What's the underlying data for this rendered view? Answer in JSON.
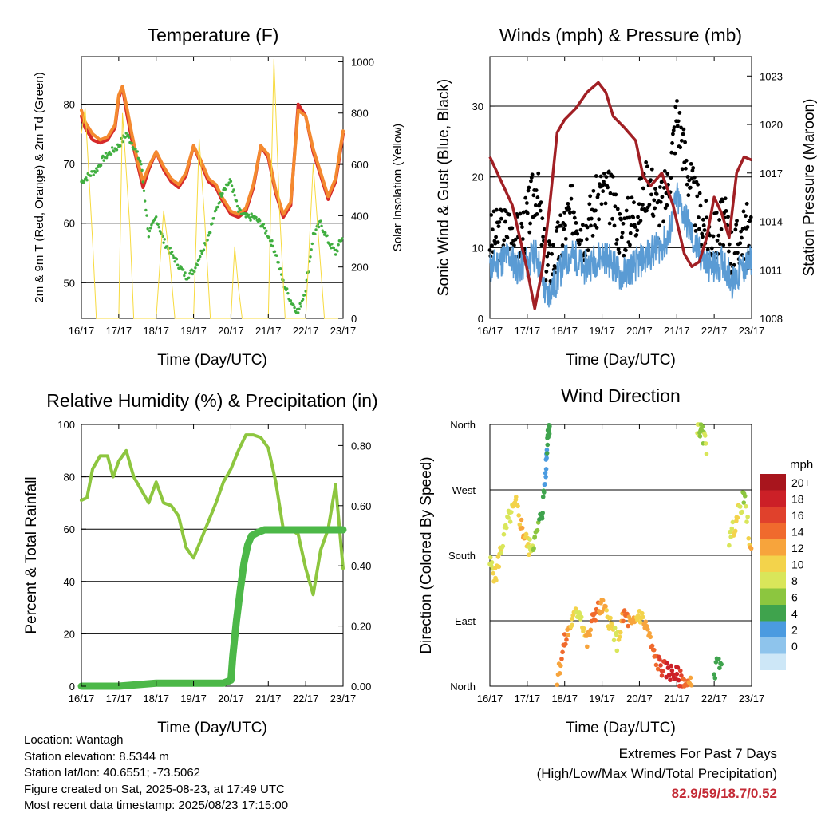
{
  "colors": {
    "temp_red": "#d62a2a",
    "temp_orange": "#f4892f",
    "dew_green": "#3fae3f",
    "solar_yellow": "#f7da3e",
    "gust_black": "#000000",
    "wind_blue": "#5a9bd4",
    "pressure_maroon": "#a11f24",
    "rh_lightgreen": "#8dc63f",
    "precip_green": "#4cb848",
    "extremes_red": "#c42a35"
  },
  "x_ticks": [
    "16/17",
    "17/17",
    "18/17",
    "19/17",
    "20/17",
    "21/17",
    "22/17",
    "23/17"
  ],
  "chart_data": [
    {
      "type": "line",
      "title": "Temperature (F)",
      "xlabel": "Time (Day/UTC)",
      "ylabel": "2m & 9m T (Red, Orange) & 2m Td (Green)",
      "ylabel_right": "Solar Insolation (Yellow)",
      "ylim": [
        44,
        88
      ],
      "ylim_right": [
        0,
        1020
      ],
      "yticks": [
        50,
        60,
        70,
        80
      ],
      "yticks_right": [
        0,
        200,
        400,
        600,
        800,
        1000
      ],
      "grid": true,
      "series": [
        {
          "name": "2m T",
          "color": "#d62a2a",
          "axis": "left",
          "x": [
            0,
            0.1,
            0.3,
            0.5,
            0.7,
            0.9,
            1.0,
            1.1,
            1.2,
            1.35,
            1.5,
            1.65,
            1.8,
            2.0,
            2.2,
            2.4,
            2.6,
            2.8,
            3.0,
            3.2,
            3.4,
            3.6,
            3.75,
            3.9,
            4.0,
            4.2,
            4.4,
            4.6,
            4.8,
            5.0,
            5.2,
            5.4,
            5.6,
            5.8,
            6.0,
            6.2,
            6.4,
            6.6,
            6.8,
            7.0
          ],
          "y": [
            78,
            76,
            74,
            73.5,
            74,
            76,
            81,
            83,
            79,
            74,
            70,
            66,
            69,
            72,
            69,
            67,
            66,
            68,
            73,
            70,
            67,
            66,
            64,
            62.5,
            61.5,
            61,
            62,
            66,
            73,
            71,
            65,
            61,
            63,
            80,
            78,
            72,
            68,
            64,
            67,
            75
          ]
        },
        {
          "name": "9m T",
          "color": "#f4892f",
          "axis": "left",
          "x": [
            0,
            0.1,
            0.3,
            0.5,
            0.7,
            0.9,
            1.0,
            1.1,
            1.2,
            1.35,
            1.5,
            1.65,
            1.8,
            2.0,
            2.2,
            2.4,
            2.6,
            2.8,
            3.0,
            3.2,
            3.4,
            3.6,
            3.75,
            3.9,
            4.0,
            4.2,
            4.4,
            4.6,
            4.8,
            5.0,
            5.2,
            5.4,
            5.6,
            5.8,
            6.0,
            6.2,
            6.4,
            6.6,
            6.8,
            7.0
          ],
          "y": [
            79,
            77,
            75,
            74,
            74.5,
            76.5,
            81.5,
            83,
            80,
            75,
            70.5,
            67,
            69.5,
            72,
            69.5,
            67.5,
            66.5,
            68.5,
            73,
            70.5,
            67.5,
            66.5,
            64.5,
            63,
            62,
            61.5,
            62.5,
            66.5,
            73,
            71.5,
            65.5,
            61.5,
            63.5,
            79,
            78,
            72.5,
            68.5,
            64.5,
            67.5,
            75.5
          ]
        },
        {
          "name": "2m Td",
          "color": "#3fae3f",
          "axis": "left",
          "x": [
            0,
            0.2,
            0.4,
            0.6,
            0.8,
            1.0,
            1.2,
            1.4,
            1.6,
            1.8,
            2.0,
            2.2,
            2.4,
            2.6,
            2.8,
            3.0,
            3.2,
            3.4,
            3.6,
            3.8,
            4.0,
            4.2,
            4.4,
            4.6,
            4.8,
            5.0,
            5.2,
            5.4,
            5.6,
            5.8,
            6.0,
            6.2,
            6.4,
            6.6,
            6.8,
            7.0
          ],
          "y": [
            67,
            68,
            69,
            71,
            72,
            73,
            75,
            73,
            70,
            58,
            61,
            57,
            55,
            53,
            51,
            52,
            55,
            58,
            62,
            66,
            67,
            62,
            61,
            61,
            60,
            58,
            55,
            50,
            47,
            45,
            49,
            58,
            60,
            57,
            55,
            58
          ]
        },
        {
          "name": "Solar Insolation",
          "color": "#f7da3e",
          "axis": "right",
          "x": [
            0,
            0.1,
            0.3,
            0.4,
            1.0,
            1.1,
            1.3,
            1.4,
            2.0,
            2.2,
            2.35,
            2.5,
            3.0,
            3.15,
            3.3,
            3.45,
            4.0,
            4.1,
            4.2,
            4.3,
            5.0,
            5.15,
            5.3,
            5.45,
            6.0,
            6.2,
            6.35,
            6.5,
            7.0
          ],
          "y": [
            720,
            820,
            300,
            0,
            0,
            800,
            350,
            0,
            0,
            420,
            250,
            0,
            0,
            700,
            380,
            0,
            0,
            280,
            120,
            0,
            0,
            1010,
            420,
            0,
            0,
            600,
            300,
            0,
            0
          ]
        }
      ]
    },
    {
      "type": "scatter",
      "title": "Winds (mph) & Pressure (mb)",
      "xlabel": "Time (Day/UTC)",
      "ylabel": "Sonic Wind & Gust (Blue, Black)",
      "ylabel_right": "Station Pressure (Maroon)",
      "ylim": [
        0,
        37
      ],
      "ylim_right": [
        1008,
        1024.2
      ],
      "yticks": [
        0,
        10,
        20,
        30
      ],
      "yticks_right": [
        1008,
        1011,
        1014,
        1017,
        1020,
        1023
      ],
      "grid": true,
      "series": [
        {
          "name": "Gust",
          "color": "#000000",
          "x": [
            0,
            0.25,
            0.5,
            0.75,
            1.0,
            1.25,
            1.5,
            1.75,
            2.0,
            2.25,
            2.5,
            2.75,
            3.0,
            3.25,
            3.5,
            3.75,
            4.0,
            4.25,
            4.5,
            4.75,
            5.0,
            5.25,
            5.5,
            5.75,
            6.0,
            6.25,
            6.5,
            6.75,
            7.0
          ],
          "y": [
            11,
            12,
            13,
            11,
            14,
            19,
            7,
            9,
            13,
            16,
            12,
            15,
            18,
            17,
            12,
            14,
            16,
            20,
            15,
            18,
            29,
            22,
            16,
            13,
            11,
            14,
            9,
            12,
            13
          ]
        },
        {
          "name": "Wind",
          "color": "#5a9bd4",
          "x": [
            0,
            0.25,
            0.5,
            0.75,
            1.0,
            1.25,
            1.5,
            1.75,
            2.0,
            2.25,
            2.5,
            2.75,
            3.0,
            3.25,
            3.5,
            3.75,
            4.0,
            4.25,
            4.5,
            4.75,
            5.0,
            5.25,
            5.5,
            5.75,
            6.0,
            6.25,
            6.5,
            6.75,
            7.0
          ],
          "y": [
            7,
            8,
            9,
            7,
            8,
            9,
            3,
            5,
            8,
            9,
            7,
            8,
            9,
            8,
            6,
            7,
            8,
            9,
            10,
            11,
            17,
            14,
            10,
            8,
            7,
            8,
            5,
            7,
            8
          ]
        },
        {
          "name": "Pressure",
          "color": "#a11f24",
          "axis": "right",
          "x": [
            0,
            0.2,
            0.4,
            0.6,
            0.8,
            1.0,
            1.2,
            1.4,
            1.6,
            1.8,
            2.0,
            2.3,
            2.6,
            2.9,
            3.1,
            3.3,
            3.6,
            3.9,
            4.1,
            4.3,
            4.6,
            4.9,
            5.0,
            5.2,
            5.4,
            5.6,
            5.8,
            6.0,
            6.2,
            6.4,
            6.6,
            6.8,
            7.0
          ],
          "y": [
            1018,
            1017,
            1016,
            1015,
            1013,
            1011,
            1008.6,
            1011,
            1015,
            1019.5,
            1020.3,
            1021,
            1022,
            1022.6,
            1022,
            1020.5,
            1019.8,
            1019,
            1016.8,
            1016.2,
            1017,
            1015,
            1014,
            1012,
            1011.2,
            1011.5,
            1013,
            1015.5,
            1014.5,
            1013,
            1017,
            1018,
            1017.8
          ]
        }
      ]
    },
    {
      "type": "line",
      "title": "Relative Humidity (%) & Precipitation (in)",
      "xlabel": "Time (Day/UTC)",
      "ylabel": "Percent & Total Rainfall",
      "ylim": [
        0,
        100
      ],
      "ylim_right": [
        0,
        0.87
      ],
      "yticks": [
        0,
        20,
        40,
        60,
        80,
        100
      ],
      "yticks_right": [
        0.0,
        0.2,
        0.4,
        0.6,
        0.8
      ],
      "grid": true,
      "series": [
        {
          "name": "RH",
          "color": "#8dc63f",
          "x": [
            0,
            0.15,
            0.3,
            0.5,
            0.7,
            0.85,
            1.0,
            1.2,
            1.4,
            1.6,
            1.8,
            2.0,
            2.2,
            2.4,
            2.6,
            2.8,
            3.0,
            3.2,
            3.4,
            3.6,
            3.8,
            4.0,
            4.2,
            4.4,
            4.6,
            4.8,
            5.0,
            5.2,
            5.4,
            5.6,
            5.8,
            6.0,
            6.2,
            6.4,
            6.6,
            6.8,
            7.0
          ],
          "y": [
            71,
            72,
            83,
            88,
            88,
            80,
            86,
            90,
            80,
            75,
            70,
            78,
            70,
            69,
            65,
            53,
            49,
            56,
            63,
            70,
            78,
            83,
            90,
            96,
            96,
            95,
            91,
            78,
            60,
            60,
            58,
            45,
            35,
            52,
            60,
            77,
            45
          ]
        },
        {
          "name": "Total Precipitation",
          "color": "#4cb848",
          "axis": "right",
          "x": [
            0,
            1.0,
            2.0,
            3.0,
            3.8,
            4.0,
            4.05,
            4.15,
            4.25,
            4.35,
            4.45,
            4.55,
            4.7,
            4.9,
            5.2,
            6.0,
            7.0
          ],
          "y": [
            0.0,
            0.0,
            0.01,
            0.01,
            0.01,
            0.02,
            0.1,
            0.22,
            0.32,
            0.41,
            0.47,
            0.5,
            0.51,
            0.52,
            0.52,
            0.52,
            0.52
          ]
        }
      ]
    },
    {
      "type": "scatter",
      "title": "Wind Direction",
      "xlabel": "Time (Day/UTC)",
      "ylabel": "Direction (Colored By Speed)",
      "ytick_labels": [
        "North",
        "East",
        "South",
        "West",
        "North"
      ],
      "ylim": [
        0,
        360
      ],
      "grid": true,
      "colorbar": {
        "title": "mph",
        "labels": [
          "20+",
          "18",
          "16",
          "14",
          "12",
          "10",
          "8",
          "6",
          "4",
          "2",
          "0"
        ],
        "colors": [
          "#a8151d",
          "#cc2027",
          "#e0412c",
          "#f06a2d",
          "#f7a43c",
          "#f3d34b",
          "#d9e65a",
          "#8cc63f",
          "#3fa34d",
          "#4b9be0",
          "#8ec4ec",
          "#cde7f7"
        ]
      },
      "series": [
        {
          "name": "Direction",
          "x": [
            0,
            0.15,
            0.3,
            0.5,
            0.7,
            0.9,
            1.05,
            1.2,
            1.4,
            1.5,
            1.55,
            1.6,
            1.8,
            2.0,
            2.2,
            2.4,
            2.6,
            2.8,
            3.0,
            3.2,
            3.4,
            3.6,
            3.8,
            4.0,
            4.2,
            4.4,
            4.6,
            4.8,
            5.0,
            5.2,
            5.4,
            5.55,
            5.65,
            5.8,
            6.0,
            6.2,
            6.4,
            6.6,
            6.8,
            7.0
          ],
          "y": [
            170,
            150,
            190,
            230,
            250,
            210,
            190,
            200,
            240,
            300,
            350,
            360,
            10,
            60,
            90,
            105,
            60,
            100,
            110,
            90,
            60,
            100,
            80,
            100,
            80,
            40,
            25,
            20,
            15,
            5,
            0,
            360,
            350,
            330,
            20,
            40,
            200,
            230,
            260,
            180
          ],
          "speed": [
            8,
            10,
            9,
            8,
            10,
            12,
            9,
            6,
            4,
            2,
            4,
            3,
            12,
            14,
            10,
            8,
            12,
            14,
            12,
            10,
            8,
            14,
            12,
            10,
            12,
            14,
            16,
            18,
            18,
            14,
            12,
            8,
            6,
            8,
            4,
            4,
            8,
            10,
            6,
            12
          ]
        }
      ]
    }
  ],
  "info": {
    "location": "Location: Wantagh",
    "elevation": "Station elevation: 8.5344 m",
    "latlon": "Station lat/lon: 40.6551; -73.5062",
    "created": "Figure created on Sat, 2025-08-23, at 17:49 UTC",
    "timestamp": "Most recent data timestamp: 2025/08/23 17:15:00"
  },
  "extremes": {
    "title": "Extremes For Past 7 Days",
    "subtitle": "(High/Low/Max Wind/Total Precipitation)",
    "values": "82.9/59/18.7/0.52"
  }
}
